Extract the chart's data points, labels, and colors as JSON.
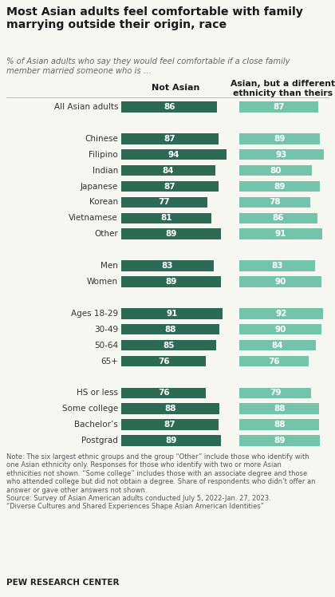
{
  "title": "Most Asian adults feel comfortable with family\nmarrying outside their origin, race",
  "subtitle": "% of Asian adults who say they would feel comfortable if a close family\nmember married someone who is …",
  "col1_header": "Not Asian",
  "col2_header": "Asian, but a different\nethnicity than theirs",
  "categories": [
    "All Asian adults",
    "",
    "Chinese",
    "Filipino",
    "Indian",
    "Japanese",
    "Korean",
    "Vietnamese",
    "Other",
    "",
    "Men",
    "Women",
    "",
    "Ages 18-29",
    "30-49",
    "50-64",
    "65+",
    "",
    "HS or less",
    "Some college",
    "Bachelor’s",
    "Postgrad"
  ],
  "not_asian": [
    86,
    null,
    87,
    94,
    84,
    87,
    77,
    81,
    89,
    null,
    83,
    89,
    null,
    91,
    88,
    85,
    76,
    null,
    76,
    88,
    87,
    89
  ],
  "asian_diff": [
    87,
    null,
    89,
    93,
    80,
    89,
    78,
    86,
    91,
    null,
    83,
    90,
    null,
    92,
    90,
    84,
    76,
    null,
    79,
    88,
    88,
    89
  ],
  "bar_color_dark": "#2d6a55",
  "bar_color_light": "#74c4ac",
  "text_color_bar": "#ffffff",
  "bg_color": "#f7f7f2",
  "note": "Note: The six largest ethnic groups and the group “Other” include those who identify with\none Asian ethnicity only. Responses for those who identify with two or more Asian\nethnicities not shown. “Some college” includes those with an associate degree and those\nwho attended college but did not obtain a degree. Share of respondents who didn’t offer an\nanswer or gave other answers not shown.",
  "source": "Source: Survey of Asian American adults conducted July 5, 2022-Jan. 27, 2023.\n“Diverse Cultures and Shared Experiences Shape Asian American Identities”",
  "pew": "PEW RESEARCH CENTER"
}
